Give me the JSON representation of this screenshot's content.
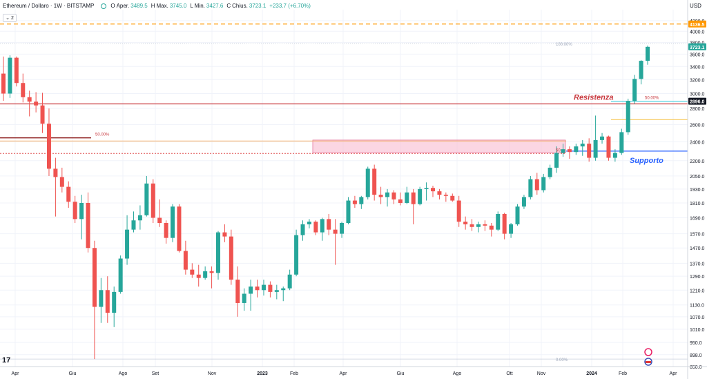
{
  "legend": {
    "symbol": "Ethereum / Dollaro · 1W · BITSTAMP",
    "open_label": "O",
    "open_text": "Aper.",
    "open": "3489.5",
    "high_label": "H",
    "high_text": "Max.",
    "high": "3745.0",
    "low_label": "L",
    "low_text": "Min.",
    "low": "3427.6",
    "close_label": "C",
    "close_text": "Chius.",
    "close": "3723.1",
    "change": "+233.7 (+6.70%)"
  },
  "collapse_label": "2",
  "currency": "USD",
  "colors": {
    "up": "#26a69a",
    "down": "#ef5350",
    "resistance": "#c8393f",
    "support": "#2962ff",
    "alert": "#ff9800",
    "zone": "#f8bbd0"
  },
  "chart_data": {
    "type": "candlestick",
    "scale": "log",
    "ylim": [
      850,
      4420
    ],
    "y_ticks": [
      "850.0",
      "898.0",
      "950.0",
      "1010.0",
      "1070.0",
      "1130.0",
      "1210.0",
      "1290.0",
      "1370.0",
      "1470.0",
      "1570.0",
      "1690.0",
      "1810.0",
      "1930.0",
      "2050.0",
      "2200.0",
      "2400.0",
      "2600.0",
      "2800.0",
      "3000.0",
      "3200.0",
      "3400.0",
      "3600.0",
      "3800.0",
      "4000.0",
      "4200.0"
    ],
    "x_ticks": [
      "Apr",
      "Giu",
      "Ago",
      "Set",
      "Nov",
      "2023",
      "Feb",
      "Apr",
      "Giu",
      "Ago",
      "Ott",
      "Nov",
      "2024",
      "Feb",
      "Apr"
    ],
    "price_badges": [
      {
        "value": 4136.5,
        "label": "4136.5",
        "color": "#ff9800"
      },
      {
        "value": 3723.1,
        "label": "3723.1",
        "color": "#26a69a"
      },
      {
        "value": 2896.0,
        "label": "2896.0",
        "color": "#131722"
      }
    ],
    "annotations": {
      "resistance": "Resistenza",
      "support": "Supporto",
      "fib_left_50": "50.00%",
      "fib_right_50": "50.00%",
      "fib_100": "100.00%",
      "fib_0": "0.00%",
      "fib_zone_50": "50"
    },
    "levels": {
      "alert": 4136.5,
      "resistance": 2860,
      "support": 2300,
      "fib_right_50": 2896,
      "fib_left_50": 2445,
      "orange_line": 2410,
      "dotted_red": 2275,
      "zone_top": 2420,
      "zone_bottom": 2280,
      "gold_line": 2660,
      "fib_100": 3780,
      "fib_0": 880
    },
    "candles": [
      [
        3290,
        3560,
        2900,
        3000
      ],
      [
        3000,
        3580,
        2940,
        3540
      ],
      [
        3540,
        3560,
        3100,
        3150
      ],
      [
        3150,
        3290,
        2880,
        2950
      ],
      [
        2950,
        3040,
        2700,
        2890
      ],
      [
        2890,
        3020,
        2750,
        2840
      ],
      [
        2840,
        3010,
        2500,
        2610
      ],
      [
        2610,
        2800,
        2050,
        2120
      ],
      [
        2120,
        2230,
        1700,
        2040
      ],
      [
        2040,
        2130,
        1900,
        1950
      ],
      [
        1950,
        2000,
        1770,
        1820
      ],
      [
        1820,
        1870,
        1650,
        1680
      ],
      [
        1680,
        1880,
        1530,
        1810
      ],
      [
        1810,
        1900,
        1440,
        1470
      ],
      [
        1470,
        1520,
        880,
        1120
      ],
      [
        1120,
        1280,
        1040,
        1210
      ],
      [
        1210,
        1290,
        1040,
        1090
      ],
      [
        1090,
        1230,
        1020,
        1200
      ],
      [
        1200,
        1420,
        1190,
        1400
      ],
      [
        1400,
        1710,
        1360,
        1600
      ],
      [
        1600,
        1740,
        1580,
        1670
      ],
      [
        1670,
        1790,
        1600,
        1710
      ],
      [
        1710,
        2050,
        1700,
        1980
      ],
      [
        1980,
        2020,
        1650,
        1690
      ],
      [
        1690,
        1840,
        1620,
        1650
      ],
      [
        1650,
        1670,
        1500,
        1540
      ],
      [
        1540,
        1800,
        1510,
        1780
      ],
      [
        1780,
        1800,
        1440,
        1450
      ],
      [
        1450,
        1520,
        1300,
        1330
      ],
      [
        1330,
        1370,
        1280,
        1300
      ],
      [
        1300,
        1360,
        1230,
        1280
      ],
      [
        1280,
        1350,
        1270,
        1320
      ],
      [
        1320,
        1350,
        1220,
        1310
      ],
      [
        1310,
        1590,
        1270,
        1580
      ],
      [
        1580,
        1640,
        1510,
        1550
      ],
      [
        1550,
        1600,
        1240,
        1270
      ],
      [
        1270,
        1350,
        1070,
        1140
      ],
      [
        1140,
        1220,
        1100,
        1190
      ],
      [
        1190,
        1270,
        1100,
        1230
      ],
      [
        1230,
        1270,
        1170,
        1210
      ],
      [
        1210,
        1270,
        1180,
        1240
      ],
      [
        1240,
        1260,
        1170,
        1200
      ],
      [
        1200,
        1240,
        1160,
        1210
      ],
      [
        1210,
        1230,
        1150,
        1220
      ],
      [
        1220,
        1330,
        1210,
        1300
      ],
      [
        1300,
        1600,
        1290,
        1560
      ],
      [
        1560,
        1670,
        1520,
        1640
      ],
      [
        1640,
        1680,
        1610,
        1660
      ],
      [
        1660,
        1670,
        1560,
        1580
      ],
      [
        1580,
        1690,
        1520,
        1680
      ],
      [
        1680,
        1720,
        1560,
        1600
      ],
      [
        1600,
        1680,
        1360,
        1570
      ],
      [
        1570,
        1660,
        1540,
        1650
      ],
      [
        1650,
        1860,
        1640,
        1830
      ],
      [
        1830,
        1870,
        1770,
        1800
      ],
      [
        1800,
        1870,
        1760,
        1860
      ],
      [
        1860,
        2140,
        1840,
        2120
      ],
      [
        2120,
        2160,
        1830,
        1880
      ],
      [
        1880,
        1950,
        1800,
        1860
      ],
      [
        1860,
        1930,
        1780,
        1900
      ],
      [
        1900,
        1920,
        1800,
        1840
      ],
      [
        1840,
        1900,
        1790,
        1810
      ],
      [
        1810,
        1950,
        1800,
        1900
      ],
      [
        1900,
        1930,
        1640,
        1800
      ],
      [
        1800,
        1950,
        1790,
        1930
      ],
      [
        1930,
        1990,
        1830,
        1940
      ],
      [
        1940,
        1960,
        1860,
        1910
      ],
      [
        1910,
        1930,
        1840,
        1880
      ],
      [
        1880,
        1900,
        1820,
        1870
      ],
      [
        1870,
        1890,
        1820,
        1830
      ],
      [
        1830,
        1870,
        1620,
        1660
      ],
      [
        1660,
        1700,
        1600,
        1640
      ],
      [
        1640,
        1680,
        1590,
        1620
      ],
      [
        1620,
        1660,
        1580,
        1640
      ],
      [
        1640,
        1670,
        1590,
        1630
      ],
      [
        1630,
        1650,
        1550,
        1600
      ],
      [
        1600,
        1740,
        1590,
        1720
      ],
      [
        1720,
        1730,
        1530,
        1570
      ],
      [
        1570,
        1650,
        1540,
        1640
      ],
      [
        1640,
        1800,
        1630,
        1780
      ],
      [
        1780,
        1880,
        1760,
        1860
      ],
      [
        1860,
        2050,
        1840,
        2020
      ],
      [
        2020,
        2080,
        1880,
        1920
      ],
      [
        1920,
        2070,
        1900,
        2040
      ],
      [
        2040,
        2160,
        2020,
        2130
      ],
      [
        2130,
        2350,
        2080,
        2280
      ],
      [
        2280,
        2380,
        2240,
        2320
      ],
      [
        2320,
        2350,
        2220,
        2290
      ],
      [
        2290,
        2380,
        2260,
        2350
      ],
      [
        2350,
        2420,
        2250,
        2380
      ],
      [
        2380,
        2440,
        2190,
        2230
      ],
      [
        2230,
        2710,
        2200,
        2420
      ],
      [
        2420,
        2500,
        2380,
        2460
      ],
      [
        2460,
        2470,
        2200,
        2230
      ],
      [
        2230,
        2320,
        2190,
        2280
      ],
      [
        2280,
        2550,
        2260,
        2510
      ],
      [
        2510,
        2930,
        2480,
        2900
      ],
      [
        2900,
        3270,
        2860,
        3210
      ],
      [
        3210,
        3500,
        3130,
        3490
      ],
      [
        3490,
        3745,
        3428,
        3723
      ]
    ]
  }
}
